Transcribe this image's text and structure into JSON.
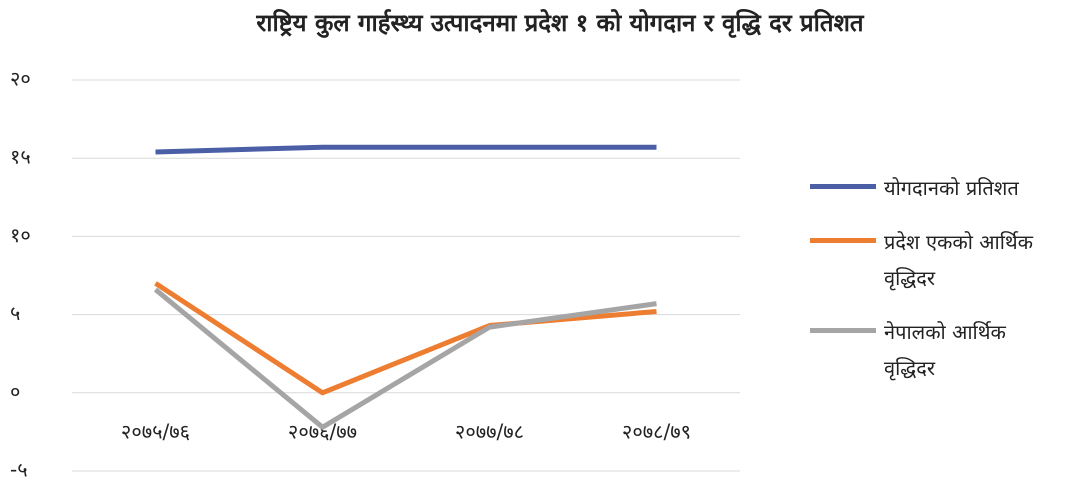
{
  "chart_data": {
    "type": "line",
    "title": "राष्ट्रिय कुल गार्हस्थ्य उत्पादनमा प्रदेश १ को योगदान र वृद्धि दर प्रतिशत",
    "categories": [
      "२०७५/७६",
      "२०७६/७७",
      "२०७७/७८",
      "२०७८/७९"
    ],
    "series": [
      {
        "name": "योगदानको प्रतिशत",
        "color": "#4a5fa5",
        "values": [
          15.4,
          15.7,
          15.7,
          15.7
        ]
      },
      {
        "name": "प्रदेश एकको आर्थिक वृद्धिदर",
        "color": "#ed7d31",
        "values": [
          7.0,
          0,
          4.3,
          5.2
        ]
      },
      {
        "name": "नेपालको आर्थिक वृद्धिदर",
        "color": "#a5a5a5",
        "values": [
          6.6,
          -2.2,
          4.2,
          5.7
        ]
      }
    ],
    "ylim": [
      -5,
      20
    ],
    "yticks": [
      {
        "value": -5,
        "label": "-५"
      },
      {
        "value": 0,
        "label": "०"
      },
      {
        "value": 5,
        "label": "५"
      },
      {
        "value": 10,
        "label": "१०"
      },
      {
        "value": 15,
        "label": "१५"
      },
      {
        "value": 20,
        "label": "२०"
      }
    ],
    "grid": true,
    "legend": "right"
  }
}
